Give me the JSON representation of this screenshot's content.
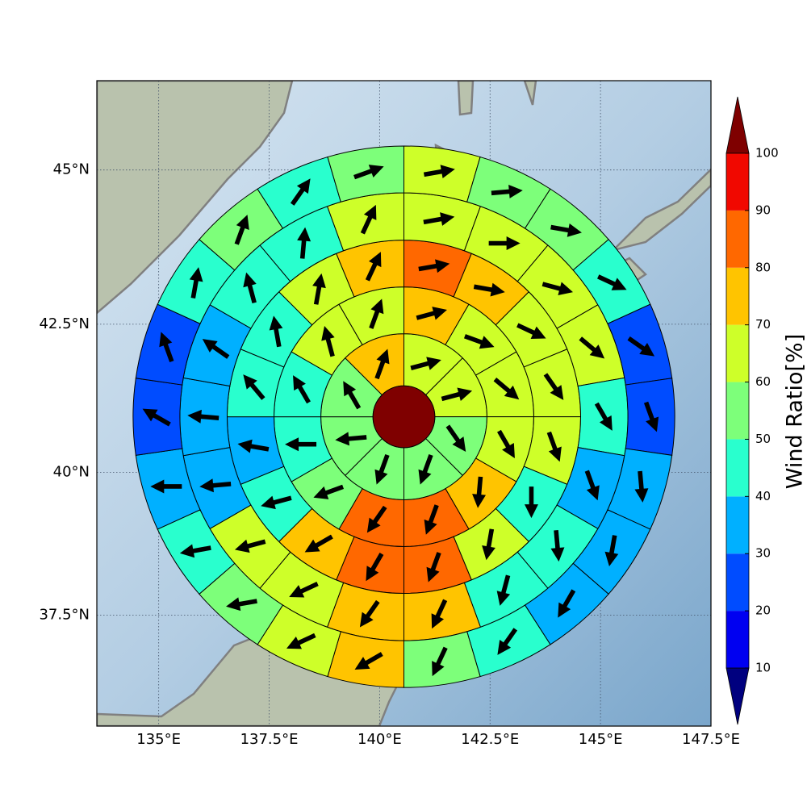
{
  "chart_data": {
    "type": "polar-sector-map",
    "xlim": [
      133.6,
      147.5
    ],
    "ylim": [
      35.5,
      46.4
    ],
    "xticks": [
      {
        "value": 135,
        "label": "135°E"
      },
      {
        "value": 137.5,
        "label": "137.5°E"
      },
      {
        "value": 140,
        "label": "140°E"
      },
      {
        "value": 142.5,
        "label": "142.5°E"
      },
      {
        "value": 145,
        "label": "145°E"
      },
      {
        "value": 147.5,
        "label": "147.5°E"
      }
    ],
    "yticks": [
      {
        "value": 37.5,
        "label": "37.5°N"
      },
      {
        "value": 40,
        "label": "40°N"
      },
      {
        "value": 42.5,
        "label": "42.5°N"
      },
      {
        "value": 45,
        "label": "45°N"
      }
    ],
    "grid": true,
    "center": [
      140.55,
      40.95
    ],
    "ring_edges_deg": [
      0.7,
      1.88,
      2.94,
      4.0,
      5.07,
      6.13
    ],
    "center_value": 100,
    "rings": [
      {
        "values": [
          65,
          65,
          55,
          55,
          55,
          55,
          55,
          75
        ],
        "directions": [
          75,
          75,
          145,
          200,
          200,
          265,
          330,
          20
        ]
      },
      {
        "values": [
          75,
          65,
          65,
          65,
          75,
          85,
          85,
          55,
          45,
          45,
          65,
          65
        ],
        "directions": [
          75,
          110,
          130,
          150,
          185,
          200,
          215,
          250,
          270,
          330,
          345,
          20
        ]
      },
      {
        "values": [
          85,
          75,
          65,
          65,
          65,
          45,
          65,
          85,
          85,
          75,
          45,
          35,
          45,
          45,
          65,
          75
        ],
        "directions": [
          80,
          100,
          115,
          145,
          160,
          180,
          190,
          200,
          210,
          240,
          255,
          280,
          320,
          350,
          10,
          25
        ]
      },
      {
        "values": [
          65,
          65,
          65,
          65,
          45,
          35,
          45,
          45,
          75,
          75,
          65,
          65,
          35,
          35,
          35,
          45,
          45,
          65
        ],
        "directions": [
          80,
          90,
          105,
          130,
          150,
          160,
          175,
          195,
          205,
          215,
          245,
          255,
          265,
          275,
          305,
          345,
          5,
          25
        ]
      },
      {
        "values": [
          65,
          55,
          55,
          45,
          25,
          25,
          35,
          35,
          35,
          45,
          55,
          75,
          65,
          55,
          45,
          35,
          25,
          25,
          45,
          55,
          45,
          55
        ],
        "directions": [
          80,
          85,
          100,
          115,
          125,
          160,
          175,
          190,
          210,
          215,
          205,
          240,
          245,
          260,
          260,
          270,
          300,
          340,
          10,
          20,
          35,
          70
        ]
      }
    ],
    "colorbar": {
      "label": "Wind Ratio[%]",
      "levels": [
        10,
        20,
        30,
        40,
        50,
        60,
        70,
        80,
        90,
        100
      ],
      "colors": [
        "#00007f",
        "#0000f1",
        "#004cff",
        "#00b0ff",
        "#29ffce",
        "#7dff7a",
        "#ceff29",
        "#ffc400",
        "#ff6800",
        "#f10800",
        "#7f0000"
      ]
    }
  }
}
